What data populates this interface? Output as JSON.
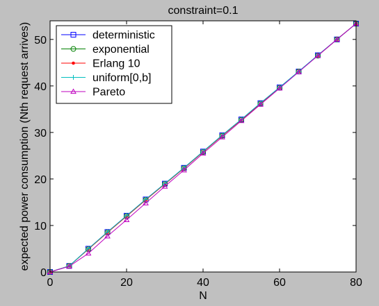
{
  "chart_data": {
    "type": "line",
    "title": "constraint=0.1",
    "xlabel": "N",
    "ylabel": "expected power consumption (Nth request arrives)",
    "xlim": [
      0,
      80
    ],
    "ylim": [
      0,
      54
    ],
    "xticks": [
      0,
      20,
      40,
      60,
      80
    ],
    "yticks": [
      0,
      10,
      20,
      30,
      40,
      50
    ],
    "grid": false,
    "legend_position": "top-left",
    "x": [
      0,
      5,
      10,
      15,
      20,
      25,
      30,
      35,
      40,
      45,
      50,
      55,
      60,
      65,
      70,
      75,
      80
    ],
    "series": [
      {
        "name": "deterministic",
        "color": "#0000ff",
        "marker": "square",
        "values": [
          0,
          1.3,
          5.0,
          8.6,
          12.1,
          15.6,
          19.0,
          22.4,
          25.9,
          29.4,
          32.8,
          36.3,
          39.7,
          43.1,
          46.6,
          50.0,
          53.4
        ]
      },
      {
        "name": "exponential",
        "color": "#008000",
        "marker": "circle",
        "values": [
          0,
          1.3,
          4.9,
          8.5,
          12.0,
          15.5,
          18.9,
          22.3,
          25.8,
          29.3,
          32.7,
          36.2,
          39.6,
          43.1,
          46.5,
          50.0,
          53.4
        ]
      },
      {
        "name": "Erlang 10",
        "color": "#ff0000",
        "marker": "dot",
        "values": [
          0,
          1.3,
          4.9,
          8.5,
          12.0,
          15.5,
          18.9,
          22.3,
          25.8,
          29.3,
          32.7,
          36.2,
          39.6,
          43.1,
          46.5,
          50.0,
          53.4
        ]
      },
      {
        "name": "uniform[0,b]",
        "color": "#00bfbf",
        "marker": "plus",
        "values": [
          0,
          1.3,
          5.0,
          8.6,
          12.1,
          15.6,
          19.0,
          22.4,
          25.9,
          29.4,
          32.8,
          36.3,
          39.7,
          43.1,
          46.6,
          50.0,
          53.4
        ]
      },
      {
        "name": "Pareto",
        "color": "#bf00bf",
        "marker": "triangle",
        "values": [
          0,
          1.2,
          4.0,
          7.7,
          11.2,
          14.8,
          18.4,
          21.9,
          25.5,
          29.0,
          32.5,
          36.0,
          39.5,
          43.0,
          46.5,
          50.0,
          53.4
        ]
      }
    ]
  }
}
